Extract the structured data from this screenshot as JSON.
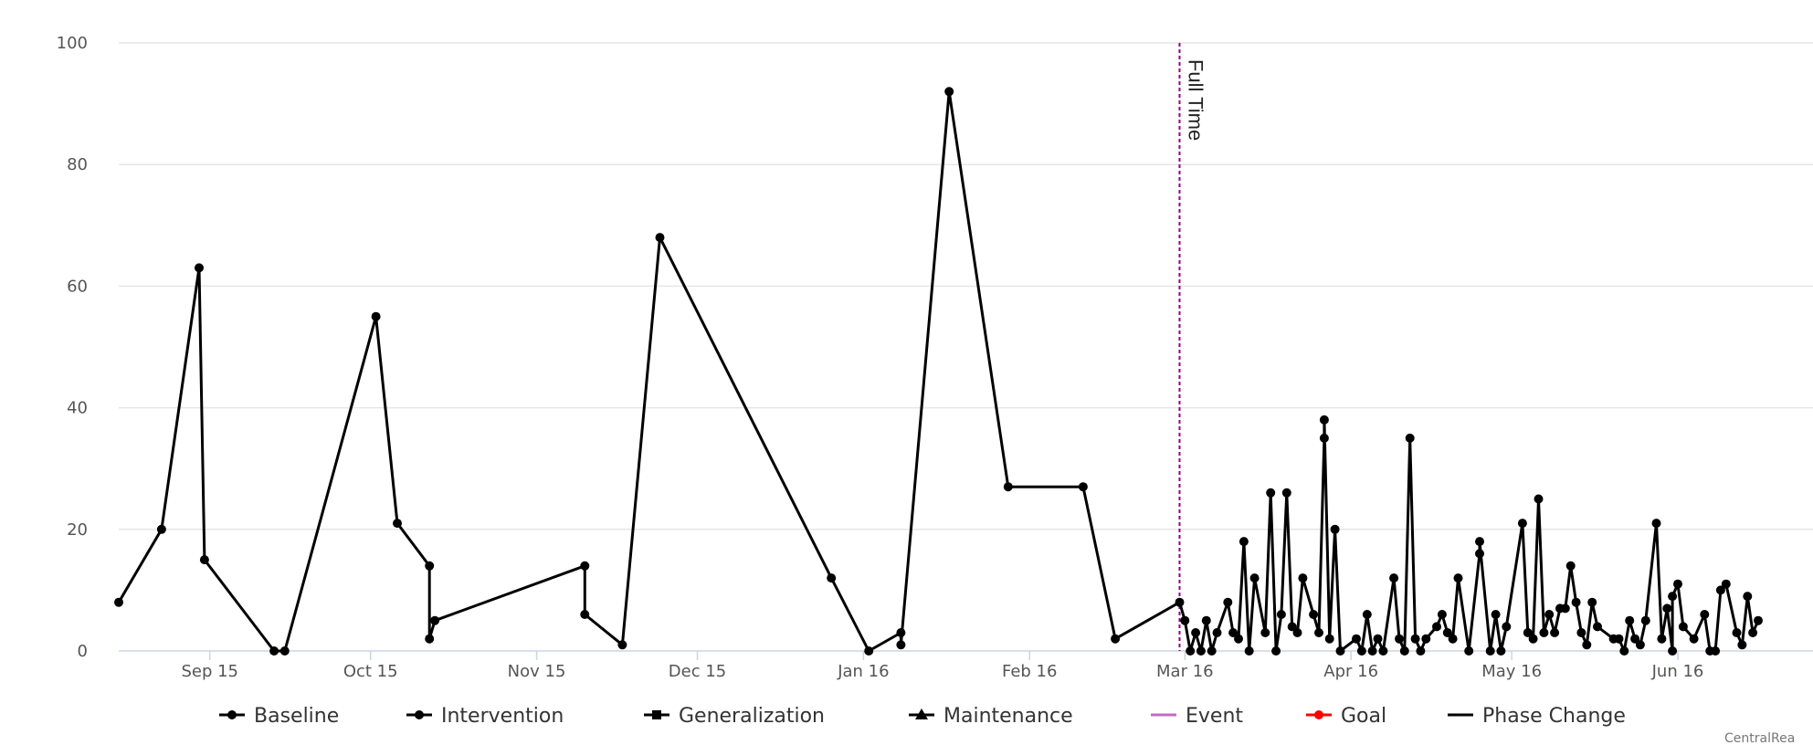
{
  "chart_data": {
    "type": "line",
    "ylim": [
      0,
      100
    ],
    "yticks": [
      0,
      20,
      40,
      60,
      80,
      100
    ],
    "xlim": [
      "2015-08-29",
      "2016-06-30"
    ],
    "xticks": [
      {
        "date": "2015-09-15",
        "label": "Sep 15"
      },
      {
        "date": "2015-10-15",
        "label": "Oct 15"
      },
      {
        "date": "2015-11-15",
        "label": "Nov 15"
      },
      {
        "date": "2015-12-15",
        "label": "Dec 15"
      },
      {
        "date": "2016-01-15",
        "label": "Jan 16"
      },
      {
        "date": "2016-02-15",
        "label": "Feb 16"
      },
      {
        "date": "2016-03-15",
        "label": "Mar 16"
      },
      {
        "date": "2016-04-15",
        "label": "Apr 16"
      },
      {
        "date": "2016-05-15",
        "label": "May 16"
      },
      {
        "date": "2016-06-15",
        "label": "Jun 16"
      }
    ],
    "grid": true,
    "legend_position": "bottom",
    "legend": [
      {
        "label": "Baseline",
        "marker": "circle",
        "color": "#000000"
      },
      {
        "label": "Intervention",
        "marker": "circle",
        "color": "#000000"
      },
      {
        "label": "Generalization",
        "marker": "square",
        "color": "#000000"
      },
      {
        "label": "Maintenance",
        "marker": "triangle",
        "color": "#000000"
      },
      {
        "label": "Event",
        "marker": "none",
        "color": "#c36bc3"
      },
      {
        "label": "Goal",
        "marker": "circle",
        "color": "#ff0000"
      },
      {
        "label": "Phase Change",
        "marker": "none",
        "color": "#000000"
      }
    ],
    "events": [
      {
        "date": "2016-03-14",
        "label": "Full Time",
        "color": "#8b008b"
      }
    ],
    "series": [
      {
        "color": "#000000",
        "marker": "circle",
        "points": [
          [
            "2015-08-29",
            8
          ],
          [
            "2015-09-06",
            20
          ],
          [
            "2015-09-13",
            63
          ],
          [
            "2015-09-14",
            15
          ],
          [
            "2015-09-27",
            0
          ],
          [
            "2015-09-29",
            0
          ],
          [
            "2015-10-16",
            55
          ],
          [
            "2015-10-20",
            21
          ],
          [
            "2015-10-26",
            14
          ],
          [
            "2015-10-26",
            2
          ],
          [
            "2015-10-27",
            5
          ],
          [
            "2015-11-24",
            14
          ],
          [
            "2015-11-24",
            6
          ],
          [
            "2015-12-01",
            1
          ],
          [
            "2015-12-08",
            68
          ],
          [
            "2016-01-09",
            12
          ],
          [
            "2016-01-16",
            0
          ],
          [
            "2016-01-22",
            3
          ],
          [
            "2016-01-22",
            1
          ],
          [
            "2016-01-31",
            92
          ],
          [
            "2016-02-11",
            27
          ],
          [
            "2016-02-25",
            27
          ],
          [
            "2016-03-02",
            2
          ],
          [
            "2016-03-14",
            8
          ],
          [
            "2016-03-15",
            5
          ],
          [
            "2016-03-16",
            0
          ],
          [
            "2016-03-17",
            3
          ],
          [
            "2016-03-18",
            0
          ],
          [
            "2016-03-19",
            5
          ],
          [
            "2016-03-20",
            0
          ],
          [
            "2016-03-21",
            3
          ],
          [
            "2016-03-23",
            8
          ],
          [
            "2016-03-24",
            3
          ],
          [
            "2016-03-25",
            2
          ],
          [
            "2016-03-26",
            18
          ],
          [
            "2016-03-27",
            0
          ],
          [
            "2016-03-28",
            12
          ],
          [
            "2016-03-30",
            3
          ],
          [
            "2016-03-31",
            26
          ],
          [
            "2016-04-01",
            0
          ],
          [
            "2016-04-02",
            6
          ],
          [
            "2016-04-03",
            26
          ],
          [
            "2016-04-04",
            4
          ],
          [
            "2016-04-05",
            3
          ],
          [
            "2016-04-06",
            12
          ],
          [
            "2016-04-08",
            6
          ],
          [
            "2016-04-09",
            3
          ],
          [
            "2016-04-10",
            35
          ],
          [
            "2016-04-10",
            38
          ],
          [
            "2016-04-11",
            2
          ],
          [
            "2016-04-12",
            20
          ],
          [
            "2016-04-13",
            0
          ],
          [
            "2016-04-16",
            2
          ],
          [
            "2016-04-17",
            0
          ],
          [
            "2016-04-18",
            6
          ],
          [
            "2016-04-19",
            0
          ],
          [
            "2016-04-20",
            2
          ],
          [
            "2016-04-21",
            0
          ],
          [
            "2016-04-23",
            12
          ],
          [
            "2016-04-24",
            2
          ],
          [
            "2016-04-25",
            0
          ],
          [
            "2016-04-26",
            35
          ],
          [
            "2016-04-27",
            2
          ],
          [
            "2016-04-28",
            0
          ],
          [
            "2016-04-29",
            2
          ],
          [
            "2016-05-01",
            4
          ],
          [
            "2016-05-02",
            6
          ],
          [
            "2016-05-03",
            3
          ],
          [
            "2016-05-04",
            2
          ],
          [
            "2016-05-05",
            12
          ],
          [
            "2016-05-07",
            0
          ],
          [
            "2016-05-09",
            16
          ],
          [
            "2016-05-09",
            18
          ],
          [
            "2016-05-11",
            0
          ],
          [
            "2016-05-12",
            6
          ],
          [
            "2016-05-13",
            0
          ],
          [
            "2016-05-14",
            4
          ],
          [
            "2016-05-17",
            21
          ],
          [
            "2016-05-18",
            3
          ],
          [
            "2016-05-19",
            2
          ],
          [
            "2016-05-20",
            25
          ],
          [
            "2016-05-21",
            3
          ],
          [
            "2016-05-22",
            6
          ],
          [
            "2016-05-23",
            3
          ],
          [
            "2016-05-24",
            7
          ],
          [
            "2016-05-25",
            7
          ],
          [
            "2016-05-26",
            14
          ],
          [
            "2016-05-27",
            8
          ],
          [
            "2016-05-28",
            3
          ],
          [
            "2016-05-29",
            1
          ],
          [
            "2016-05-30",
            8
          ],
          [
            "2016-05-31",
            4
          ],
          [
            "2016-06-03",
            2
          ],
          [
            "2016-06-04",
            2
          ],
          [
            "2016-06-05",
            0
          ],
          [
            "2016-06-06",
            5
          ],
          [
            "2016-06-07",
            2
          ],
          [
            "2016-06-08",
            1
          ],
          [
            "2016-06-09",
            5
          ],
          [
            "2016-06-11",
            21
          ],
          [
            "2016-06-12",
            2
          ],
          [
            "2016-06-13",
            7
          ],
          [
            "2016-06-14",
            0
          ],
          [
            "2016-06-14",
            9
          ],
          [
            "2016-06-15",
            11
          ],
          [
            "2016-06-16",
            4
          ],
          [
            "2016-06-18",
            2
          ],
          [
            "2016-06-20",
            6
          ],
          [
            "2016-06-21",
            0
          ],
          [
            "2016-06-22",
            0
          ],
          [
            "2016-06-23",
            10
          ],
          [
            "2016-06-24",
            11
          ],
          [
            "2016-06-26",
            3
          ],
          [
            "2016-06-27",
            1
          ],
          [
            "2016-06-28",
            9
          ],
          [
            "2016-06-29",
            3
          ],
          [
            "2016-06-30",
            5
          ]
        ]
      }
    ]
  },
  "credit": "CentralRea"
}
